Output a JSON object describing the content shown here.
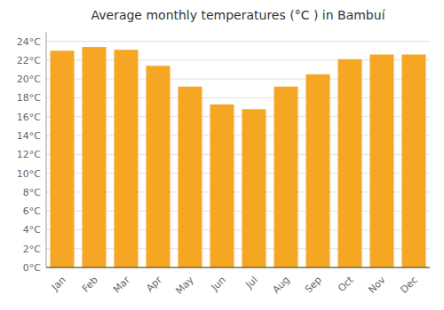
{
  "chart_data": {
    "type": "bar",
    "title": "Average monthly temperatures (°C ) in Bambuí",
    "categories": [
      "Jan",
      "Feb",
      "Mar",
      "Apr",
      "May",
      "Jun",
      "Jul",
      "Aug",
      "Sep",
      "Oct",
      "Nov",
      "Dec"
    ],
    "values": [
      23.0,
      23.4,
      23.1,
      21.4,
      19.2,
      17.3,
      16.8,
      19.2,
      20.5,
      22.1,
      22.6,
      22.6
    ],
    "color": "#F5A623",
    "ylim": [
      0,
      25
    ],
    "yticks": [
      {
        "value": 0,
        "label": "0°C"
      },
      {
        "value": 2,
        "label": "2°C"
      },
      {
        "value": 4,
        "label": "4°C"
      },
      {
        "value": 6,
        "label": "6°C"
      },
      {
        "value": 8,
        "label": "8°C"
      },
      {
        "value": 10,
        "label": "10°C"
      },
      {
        "value": 12,
        "label": "12°C"
      },
      {
        "value": 14,
        "label": "14°C"
      },
      {
        "value": 16,
        "label": "16°C"
      },
      {
        "value": 18,
        "label": "18°C"
      },
      {
        "value": 20,
        "label": "20°C"
      },
      {
        "value": 22,
        "label": "22°C"
      },
      {
        "value": 24,
        "label": "24°C"
      }
    ],
    "grid": true
  }
}
